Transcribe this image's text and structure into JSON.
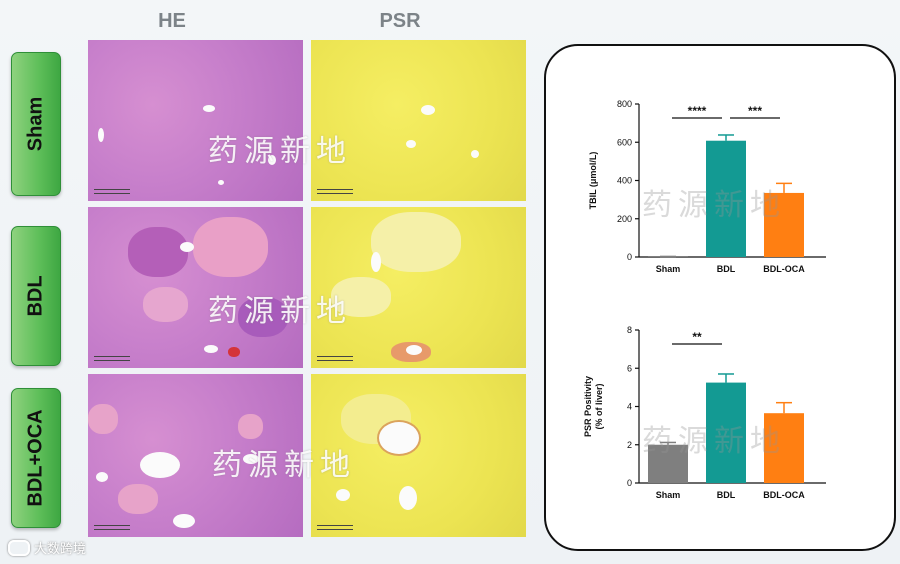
{
  "columns": {
    "he": "HE",
    "psr": "PSR"
  },
  "rows": [
    "Sham",
    "BDL",
    "BDL+OCA"
  ],
  "watermark": "药源新地",
  "footer": "大数跨境",
  "chart_data": [
    {
      "type": "bar",
      "ylabel": "TBIL (μmol/L)",
      "categories": [
        "Sham",
        "BDL",
        "BDL-OCA"
      ],
      "values": [
        2,
        608,
        335
      ],
      "errors": [
        1,
        30,
        50
      ],
      "ylim": [
        0,
        800
      ],
      "yticks": [
        "0",
        "200",
        "400",
        "600",
        "800"
      ],
      "colors": [
        "#7f7f7f",
        "#139a93",
        "#ff7f12"
      ],
      "significance": [
        {
          "from": 0,
          "to": 1,
          "label": "****"
        },
        {
          "from": 1,
          "to": 2,
          "label": "***"
        }
      ]
    },
    {
      "type": "bar",
      "ylabel": "PSR Positivity\n(% of liver)",
      "categories": [
        "Sham",
        "BDL",
        "BDL-OCA"
      ],
      "values": [
        2.0,
        5.25,
        3.65
      ],
      "errors": [
        0.12,
        0.45,
        0.55
      ],
      "ylim": [
        0,
        8
      ],
      "yticks": [
        "0",
        "2",
        "4",
        "6",
        "8"
      ],
      "colors": [
        "#7f7f7f",
        "#139a93",
        "#ff7f12"
      ],
      "significance": [
        {
          "from": 0,
          "to": 1,
          "label": "**"
        }
      ]
    }
  ]
}
